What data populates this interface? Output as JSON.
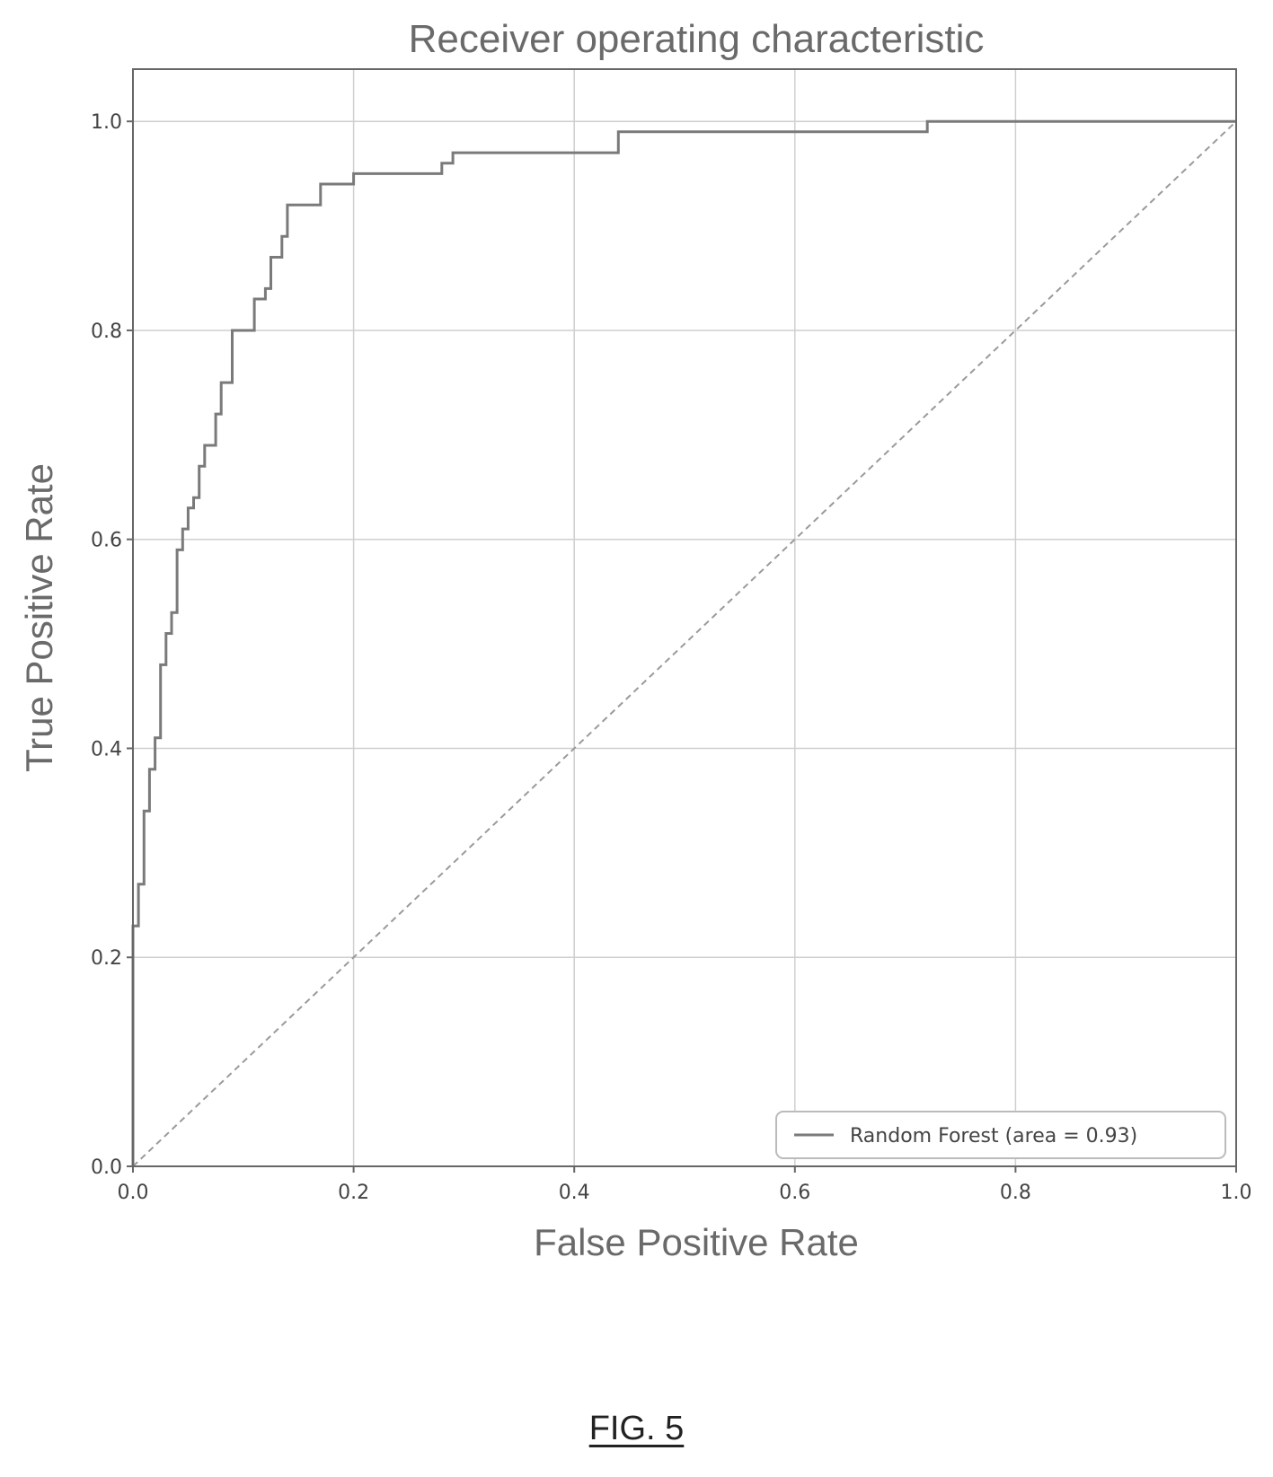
{
  "chart_data": {
    "type": "line",
    "title": "Receiver operating characteristic",
    "xlabel": "False Positive Rate",
    "ylabel": "True Positive Rate",
    "xlim": [
      0.0,
      1.0
    ],
    "ylim": [
      0.0,
      1.05
    ],
    "xticks": [
      "0.0",
      "0.2",
      "0.4",
      "0.6",
      "0.8",
      "1.0"
    ],
    "yticks": [
      "0.0",
      "0.2",
      "0.4",
      "0.6",
      "0.8",
      "1.0"
    ],
    "grid": true,
    "legend_position": "lower-right",
    "series": [
      {
        "name": "Random Forest (area = 0.93)",
        "style": "solid",
        "color": "#7a7a7a",
        "x": [
          0.0,
          0.0,
          0.005,
          0.005,
          0.01,
          0.01,
          0.015,
          0.015,
          0.02,
          0.02,
          0.025,
          0.025,
          0.03,
          0.03,
          0.035,
          0.035,
          0.04,
          0.04,
          0.045,
          0.045,
          0.05,
          0.05,
          0.055,
          0.055,
          0.06,
          0.06,
          0.065,
          0.065,
          0.075,
          0.075,
          0.08,
          0.08,
          0.09,
          0.09,
          0.095,
          0.095,
          0.11,
          0.11,
          0.12,
          0.12,
          0.125,
          0.125,
          0.135,
          0.135,
          0.14,
          0.14,
          0.145,
          0.145,
          0.17,
          0.17,
          0.175,
          0.175,
          0.2,
          0.2,
          0.28,
          0.28,
          0.29,
          0.29,
          0.305,
          0.305,
          0.44,
          0.44,
          0.72,
          0.72,
          1.0
        ],
        "y": [
          0.0,
          0.23,
          0.23,
          0.27,
          0.27,
          0.34,
          0.34,
          0.38,
          0.38,
          0.41,
          0.41,
          0.48,
          0.48,
          0.51,
          0.51,
          0.53,
          0.53,
          0.59,
          0.59,
          0.61,
          0.61,
          0.63,
          0.63,
          0.64,
          0.64,
          0.67,
          0.67,
          0.69,
          0.69,
          0.72,
          0.72,
          0.75,
          0.75,
          0.8,
          0.8,
          0.8,
          0.8,
          0.83,
          0.83,
          0.84,
          0.84,
          0.87,
          0.87,
          0.89,
          0.89,
          0.92,
          0.92,
          0.92,
          0.92,
          0.94,
          0.94,
          0.94,
          0.94,
          0.95,
          0.95,
          0.96,
          0.96,
          0.97,
          0.97,
          0.97,
          0.97,
          0.99,
          0.99,
          1.0,
          1.0
        ]
      },
      {
        "style": "dashed",
        "color": "#9a9a9a",
        "x": [
          0.0,
          1.0
        ],
        "y": [
          0.0,
          1.0
        ]
      }
    ]
  },
  "caption": "FIG. 5"
}
